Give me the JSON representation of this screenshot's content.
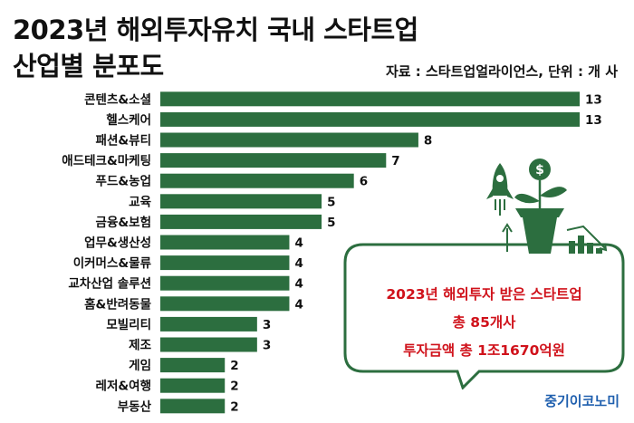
{
  "title_line1": "2023년 해외투자유치 국내 스타트업",
  "title_line2": "산업별 분포도",
  "source": "자료 : 스타트업얼라이언스, 단위 : 개 사",
  "callout": {
    "line1": "2023년 해외투자 받은 스타트업",
    "line2": "총 85개사",
    "line3": "투자금액 총 1조1670억원"
  },
  "brand": "중기이코노미",
  "icons": [
    "rocket-icon",
    "money-plant-icon",
    "growth-arrow-icon",
    "bar-growth-icon"
  ],
  "colors": {
    "bar": "#2c6e3f",
    "callout_border": "#2c6e3f",
    "callout_text": "#d0121b",
    "brand": "#1f5fae"
  },
  "chart_data": {
    "type": "bar",
    "orientation": "horizontal",
    "categories": [
      "콘텐츠&소셜",
      "헬스케어",
      "패션&뷰티",
      "애드테크&마케팅",
      "푸드&농업",
      "교육",
      "금융&보험",
      "업무&생산성",
      "이커머스&물류",
      "교차산업 솔루션",
      "홈&반려동물",
      "모빌리티",
      "제조",
      "게임",
      "레저&여행",
      "부동산"
    ],
    "values": [
      13,
      13,
      8,
      7,
      6,
      5,
      5,
      4,
      4,
      4,
      4,
      3,
      3,
      2,
      2,
      2
    ],
    "xlim": [
      0,
      13
    ],
    "grid": false,
    "legend": "none"
  }
}
